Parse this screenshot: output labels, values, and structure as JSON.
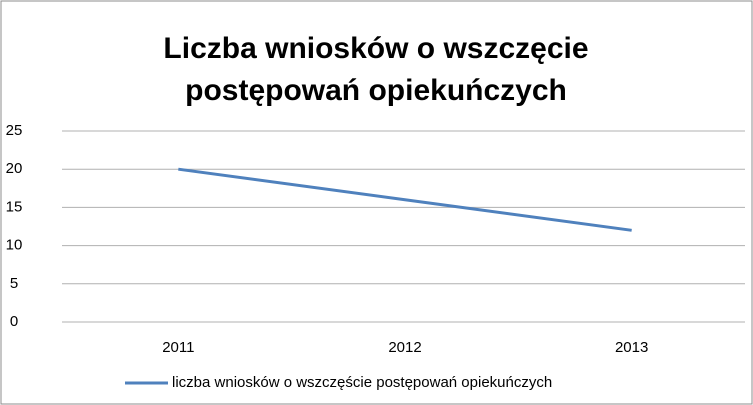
{
  "chart_data": {
    "type": "line",
    "title": "Liczba wniosków o wszczęcie postępowań opiekuńczych",
    "categories": [
      "2011",
      "2012",
      "2013"
    ],
    "series": [
      {
        "name": "liczba wniosków o wszczęście postępowań opiekuńczych",
        "color": "#4f81bd",
        "values": [
          20,
          16,
          12
        ]
      }
    ],
    "ylim": [
      0,
      25
    ],
    "yticks": [
      0,
      5,
      10,
      15,
      20,
      25
    ],
    "grid": true,
    "legend": "bottom"
  }
}
